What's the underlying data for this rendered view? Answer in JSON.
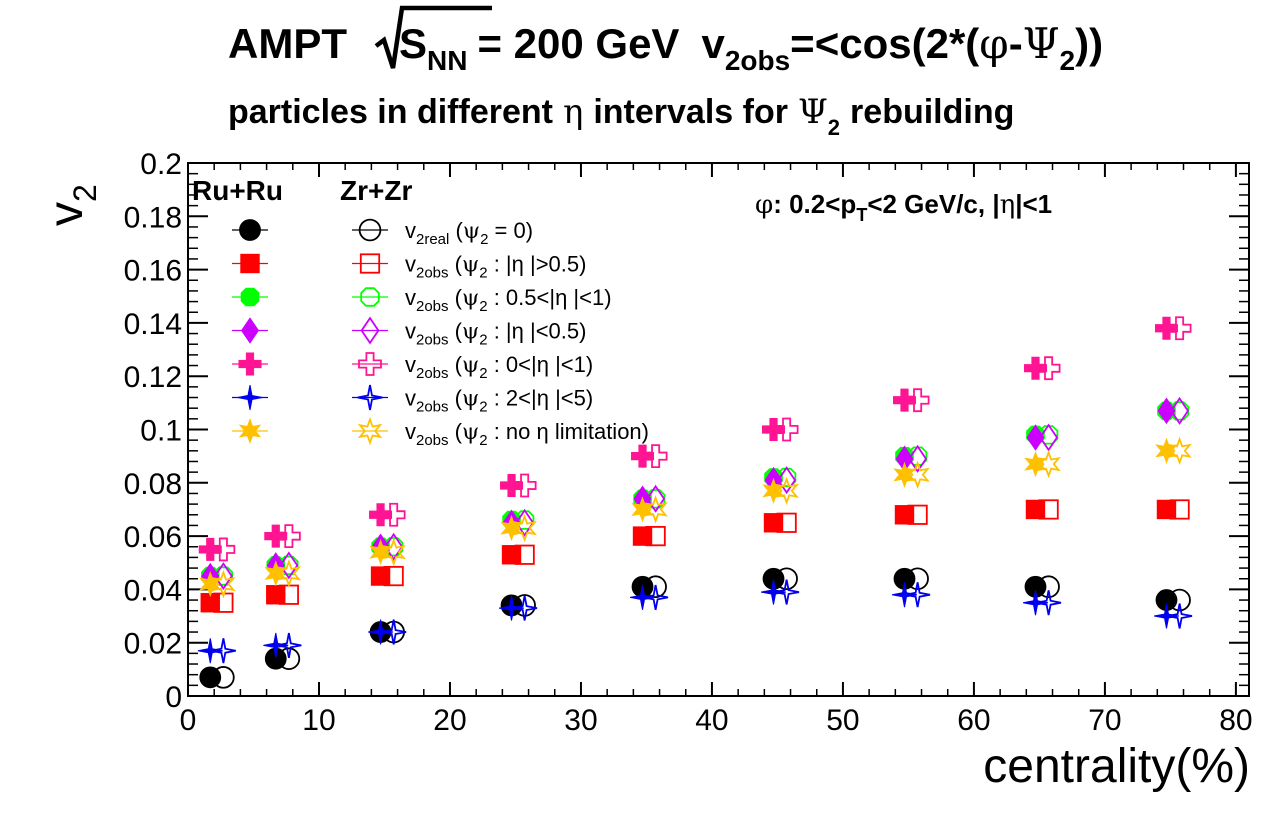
{
  "chart_data": {
    "type": "scatter",
    "title": {
      "line1": {
        "prefix": "AMPT",
        "sqrt_s": "S",
        "sqrt_sub": "NN",
        "energy": "= 200 GeV",
        "v2": "v",
        "v2_sub": "2obs",
        "eq": "=<cos(2*(",
        "phi": "φ",
        "minus": "-",
        "psi": "Ψ",
        "psi_sub": "2",
        "close": "))"
      },
      "line2": {
        "part1": "particles in different",
        "eta": "η",
        "part2": "intervals for",
        "psi": "Ψ",
        "psi_sub": "2",
        "part3": "rebuilding"
      }
    },
    "ylabel": {
      "main": "v",
      "sub": "2"
    },
    "xlabel": "centrality(%)",
    "xlim": [
      0,
      81
    ],
    "ylim": [
      0,
      0.2
    ],
    "xticks": [
      "0",
      "10",
      "20",
      "30",
      "40",
      "50",
      "60",
      "70",
      "80"
    ],
    "yticks": [
      "0",
      "0.02",
      "0.04",
      "0.06",
      "0.08",
      "0.1",
      "0.12",
      "0.14",
      "0.16",
      "0.18",
      "0.2"
    ],
    "systems": {
      "ru": "Ru+Ru",
      "zr": "Zr+Zr"
    },
    "annotation": {
      "phi": "φ",
      "text1": ": 0.2<p",
      "sub": "T",
      "text2": "<2 GeV/c, |",
      "eta": "η",
      "text3": "|<1"
    },
    "x_ru": [
      1.7,
      6.7,
      14.7,
      24.7,
      34.7,
      44.7,
      54.7,
      64.7,
      74.7
    ],
    "x_zr": [
      2.7,
      7.7,
      15.7,
      25.7,
      35.7,
      45.7,
      55.7,
      65.7,
      75.7
    ],
    "series": [
      {
        "name": "v2real (psi2 = 0)",
        "marker": "circle",
        "color": "#000000",
        "legend": {
          "v": "v",
          "vsub": "2real",
          "psi": "ψ",
          "psisub": "2",
          "rest": "= 0)"
        },
        "ru": [
          0.007,
          0.014,
          0.024,
          0.034,
          0.041,
          0.044,
          0.044,
          0.041,
          0.036
        ],
        "zr": [
          0.007,
          0.014,
          0.024,
          0.034,
          0.041,
          0.044,
          0.044,
          0.041,
          0.036
        ]
      },
      {
        "name": "v2obs (psi2 : |eta|>0.5)",
        "marker": "square",
        "color": "#ff0000",
        "legend": {
          "v": "v",
          "vsub": "2obs",
          "psi": "ψ",
          "psisub": "2",
          "rest": ": |η |>0.5)"
        },
        "ru": [
          0.035,
          0.038,
          0.045,
          0.053,
          0.06,
          0.065,
          0.068,
          0.07,
          0.07
        ],
        "zr": [
          0.035,
          0.038,
          0.045,
          0.053,
          0.06,
          0.065,
          0.068,
          0.07,
          0.07
        ]
      },
      {
        "name": "v2obs (psi2 : 0.5<|eta|<1)",
        "marker": "cross",
        "color": "#00ff00",
        "legend": {
          "v": "v",
          "vsub": "2obs",
          "psi": "ψ",
          "psisub": "2",
          "rest": ": 0.5<|η |<1)"
        },
        "ru": [
          0.045,
          0.049,
          0.056,
          0.066,
          0.074,
          0.082,
          0.09,
          0.098,
          0.107
        ],
        "zr": [
          0.045,
          0.049,
          0.056,
          0.066,
          0.074,
          0.082,
          0.09,
          0.098,
          0.107
        ]
      },
      {
        "name": "v2obs (psi2 : |eta|<0.5)",
        "marker": "diamond",
        "color": "#cc00ff",
        "legend": {
          "v": "v",
          "vsub": "2obs",
          "psi": "ψ",
          "psisub": "2",
          "rest": ": |η |<0.5)"
        },
        "ru": [
          0.045,
          0.049,
          0.056,
          0.065,
          0.074,
          0.081,
          0.089,
          0.097,
          0.107
        ],
        "zr": [
          0.045,
          0.049,
          0.056,
          0.065,
          0.074,
          0.081,
          0.089,
          0.097,
          0.107
        ]
      },
      {
        "name": "v2obs (psi2 : 0<|eta|<1)",
        "marker": "plus",
        "color": "#ff1493",
        "legend": {
          "v": "v",
          "vsub": "2obs",
          "psi": "ψ",
          "psisub": "2",
          "rest": ": 0<|η |<1)"
        },
        "ru": [
          0.055,
          0.06,
          0.068,
          0.079,
          0.09,
          0.1,
          0.111,
          0.123,
          0.138
        ],
        "zr": [
          0.055,
          0.06,
          0.068,
          0.079,
          0.09,
          0.1,
          0.111,
          0.123,
          0.138
        ]
      },
      {
        "name": "v2obs (psi2 : 2<|eta|<5)",
        "marker": "star4",
        "color": "#0000ee",
        "legend": {
          "v": "v",
          "vsub": "2obs",
          "psi": "ψ",
          "psisub": "2",
          "rest": ": 2<|η |<5)"
        },
        "ru": [
          0.017,
          0.019,
          0.024,
          0.033,
          0.037,
          0.039,
          0.038,
          0.035,
          0.03
        ],
        "zr": [
          0.017,
          0.019,
          0.024,
          0.033,
          0.037,
          0.039,
          0.038,
          0.035,
          0.03
        ]
      },
      {
        "name": "v2obs (psi2 : no eta limitation)",
        "marker": "star6",
        "color": "#ffc000",
        "legend": {
          "v": "v",
          "vsub": "2obs",
          "psi": "ψ",
          "psisub": "2",
          "rest": ": no η  limitation)"
        },
        "ru": [
          0.042,
          0.046,
          0.054,
          0.063,
          0.07,
          0.077,
          0.083,
          0.087,
          0.092
        ],
        "zr": [
          0.042,
          0.046,
          0.054,
          0.063,
          0.07,
          0.077,
          0.083,
          0.087,
          0.092
        ]
      }
    ]
  }
}
